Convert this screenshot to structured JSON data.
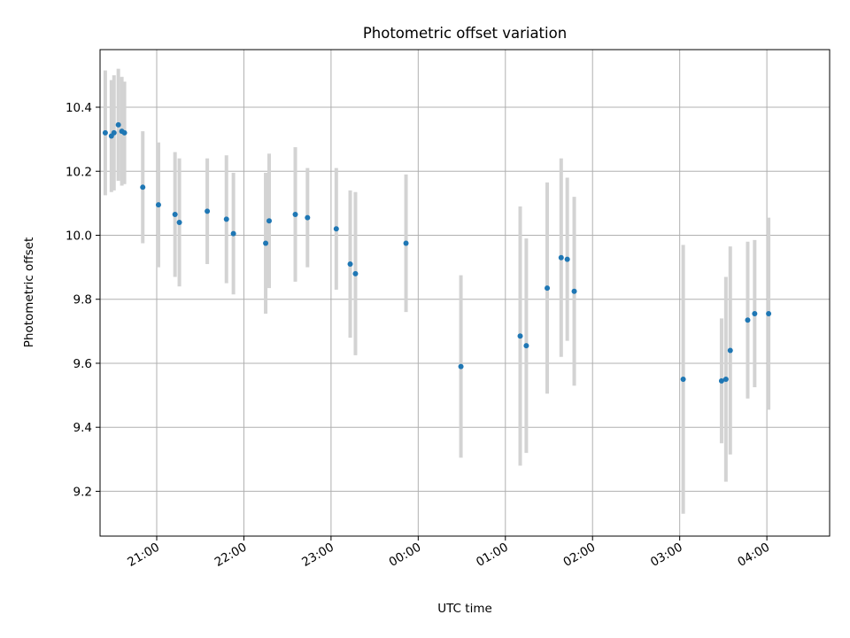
{
  "chart_data": {
    "type": "scatter",
    "title": "Photometric offset variation",
    "xlabel": "UTC time",
    "ylabel": "Photometric offset",
    "x_unit": "hours after 20:00 UTC (x axis spans midnight)",
    "xlim": [
      0.35,
      8.72
    ],
    "ylim": [
      9.06,
      10.58
    ],
    "grid": true,
    "xticks": [
      {
        "value": 1,
        "label": "21:00"
      },
      {
        "value": 2,
        "label": "22:00"
      },
      {
        "value": 3,
        "label": "23:00"
      },
      {
        "value": 4,
        "label": "00:00"
      },
      {
        "value": 5,
        "label": "01:00"
      },
      {
        "value": 6,
        "label": "02:00"
      },
      {
        "value": 7,
        "label": "03:00"
      },
      {
        "value": 8,
        "label": "04:00"
      }
    ],
    "yticks": [
      9.2,
      9.4,
      9.6,
      9.8,
      10.0,
      10.2,
      10.4
    ],
    "colors": {
      "point": "#1f77b4",
      "errorbar": "#d3d3d3"
    },
    "series": [
      {
        "points": [
          {
            "x": 0.41,
            "y": 10.32,
            "err": 0.195
          },
          {
            "x": 0.48,
            "y": 10.31,
            "err": 0.175
          },
          {
            "x": 0.51,
            "y": 10.32,
            "err": 0.18
          },
          {
            "x": 0.56,
            "y": 10.345,
            "err": 0.175
          },
          {
            "x": 0.6,
            "y": 10.325,
            "err": 0.17
          },
          {
            "x": 0.63,
            "y": 10.32,
            "err": 0.16
          },
          {
            "x": 0.84,
            "y": 10.15,
            "err": 0.175
          },
          {
            "x": 1.02,
            "y": 10.095,
            "err": 0.195
          },
          {
            "x": 1.21,
            "y": 10.065,
            "err": 0.195
          },
          {
            "x": 1.26,
            "y": 10.04,
            "err": 0.2
          },
          {
            "x": 1.58,
            "y": 10.075,
            "err": 0.165
          },
          {
            "x": 1.8,
            "y": 10.05,
            "err": 0.2
          },
          {
            "x": 1.88,
            "y": 10.005,
            "err": 0.19
          },
          {
            "x": 2.25,
            "y": 9.975,
            "err": 0.22
          },
          {
            "x": 2.29,
            "y": 10.045,
            "err": 0.21
          },
          {
            "x": 2.59,
            "y": 10.065,
            "err": 0.21
          },
          {
            "x": 2.73,
            "y": 10.055,
            "err": 0.155
          },
          {
            "x": 3.06,
            "y": 10.02,
            "err": 0.19
          },
          {
            "x": 3.22,
            "y": 9.91,
            "err": 0.23
          },
          {
            "x": 3.28,
            "y": 9.88,
            "err": 0.255
          },
          {
            "x": 3.86,
            "y": 9.975,
            "err": 0.215
          },
          {
            "x": 4.49,
            "y": 9.59,
            "err": 0.285
          },
          {
            "x": 5.17,
            "y": 9.685,
            "err": 0.405
          },
          {
            "x": 5.24,
            "y": 9.655,
            "err": 0.335
          },
          {
            "x": 5.48,
            "y": 9.835,
            "err": 0.33
          },
          {
            "x": 5.64,
            "y": 9.93,
            "err": 0.31
          },
          {
            "x": 5.71,
            "y": 9.925,
            "err": 0.255
          },
          {
            "x": 5.79,
            "y": 9.825,
            "err": 0.295
          },
          {
            "x": 7.04,
            "y": 9.55,
            "err": 0.42
          },
          {
            "x": 7.48,
            "y": 9.545,
            "err": 0.195
          },
          {
            "x": 7.53,
            "y": 9.55,
            "err": 0.32
          },
          {
            "x": 7.58,
            "y": 9.64,
            "err": 0.325
          },
          {
            "x": 7.78,
            "y": 9.735,
            "err": 0.245
          },
          {
            "x": 7.86,
            "y": 9.755,
            "err": 0.23
          },
          {
            "x": 8.02,
            "y": 9.755,
            "err": 0.3
          }
        ]
      }
    ]
  }
}
